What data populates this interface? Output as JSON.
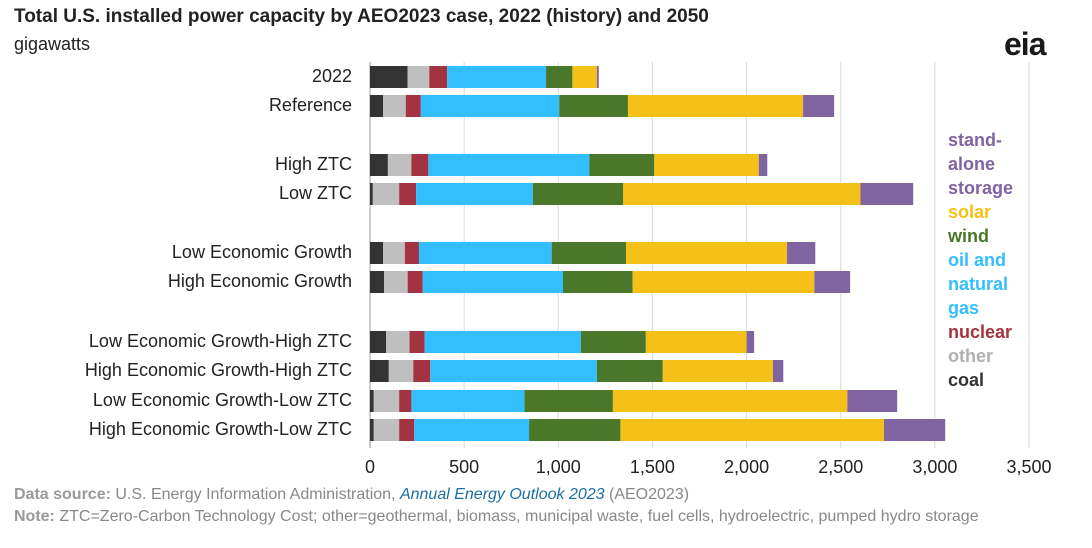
{
  "chart_data": {
    "type": "stacked-barh",
    "title": "Total U.S. installed power capacity by AEO2023 case, 2022 (history) and 2050",
    "subtitle": "gigawatts",
    "logo": "eia",
    "categories": [
      "2022",
      "Reference",
      "High ZTC",
      "Low ZTC",
      "Low Economic Growth",
      "High Economic Growth",
      "Low Economic Growth-High ZTC",
      "High Economic Growth-High ZTC",
      "Low Economic Growth-Low ZTC",
      "High Economic Growth-Low ZTC"
    ],
    "series": [
      {
        "name": "coal",
        "color": "#333333",
        "values": [
          200,
          70,
          95,
          15,
          70,
          75,
          85,
          100,
          20,
          20
        ]
      },
      {
        "name": "other",
        "color": "#bfbfbf",
        "values": [
          115,
          120,
          125,
          140,
          115,
          125,
          125,
          130,
          135,
          135
        ]
      },
      {
        "name": "nuclear",
        "color": "#a33340",
        "values": [
          95,
          80,
          90,
          90,
          75,
          80,
          80,
          90,
          65,
          80
        ]
      },
      {
        "name": "oil and natural gas",
        "color": "#33bfff",
        "values": [
          525,
          735,
          855,
          620,
          705,
          745,
          830,
          885,
          600,
          610
        ]
      },
      {
        "name": "wind",
        "color": "#4a7729",
        "values": [
          140,
          365,
          345,
          480,
          395,
          370,
          345,
          350,
          470,
          485
        ]
      },
      {
        "name": "solar",
        "color": "#f5c118",
        "values": [
          130,
          930,
          555,
          1260,
          855,
          965,
          535,
          585,
          1245,
          1400
        ]
      },
      {
        "name": "stand-alone storage",
        "color": "#8064a2",
        "values": [
          10,
          165,
          45,
          280,
          150,
          190,
          40,
          55,
          265,
          325
        ]
      }
    ],
    "xlim": [
      0,
      3500
    ],
    "xticks": [
      0,
      500,
      {
        "value": 1000,
        "label": "1,000"
      },
      {
        "value": 1500,
        "label": "1,500"
      },
      {
        "value": 2000,
        "label": "2,000"
      },
      {
        "value": 2500,
        "label": "2,500"
      },
      {
        "value": 3000,
        "label": "3,000"
      },
      {
        "value": 3500,
        "label": "3,500"
      }
    ],
    "grid": true,
    "legend": "right",
    "source_label": "Data source:",
    "source_text": "U.S. Energy Information Administration,",
    "source_link": "Annual Energy Outlook 2023",
    "source_suffix": "(AEO2023)",
    "note_label": "Note:",
    "note_text": "ZTC=Zero-Carbon Technology Cost; other=geothermal, biomass, municipal waste, fuel cells, hydroelectric, pumped hydro storage"
  }
}
